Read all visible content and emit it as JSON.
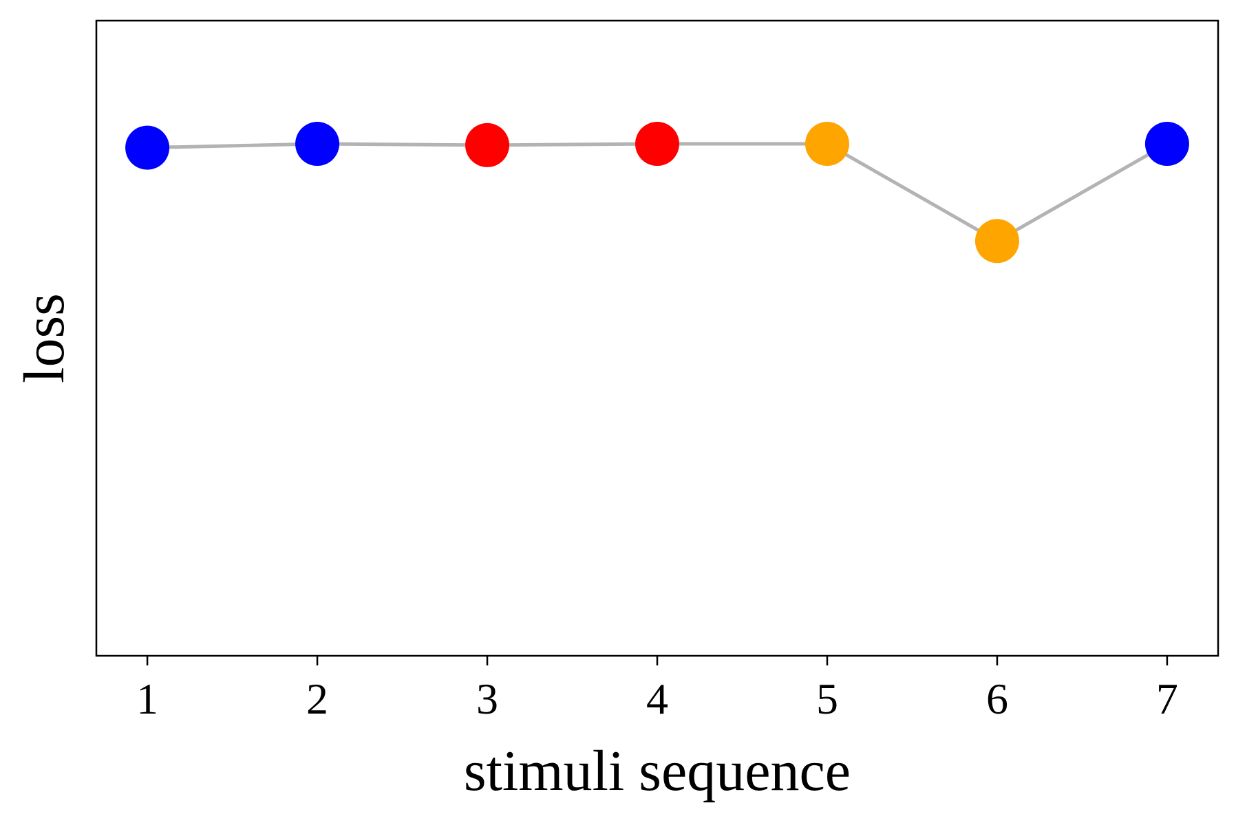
{
  "chart_data": {
    "type": "line",
    "title": "",
    "xlabel": "stimuli sequence",
    "ylabel": "loss",
    "x": [
      1,
      2,
      3,
      4,
      5,
      6,
      7
    ],
    "xticks": [
      "1",
      "2",
      "3",
      "4",
      "5",
      "6",
      "7"
    ],
    "yticks": [],
    "ylim": [
      0,
      1
    ],
    "xlim": [
      0.7,
      7.3
    ],
    "grid": false,
    "legend": "none",
    "series": [
      {
        "values": [
          0.8,
          0.806,
          0.804,
          0.806,
          0.806,
          0.653,
          0.806
        ],
        "line_color": "#b3b3b3",
        "marker_colors": [
          "#0000ff",
          "#0000ff",
          "#ff0000",
          "#ff0000",
          "#ffa500",
          "#ffa500",
          "#0000ff"
        ]
      }
    ]
  }
}
